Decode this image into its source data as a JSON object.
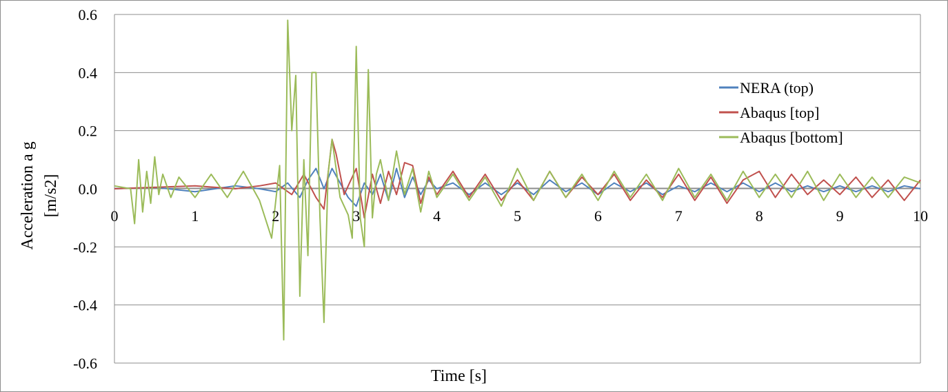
{
  "chart_data": {
    "type": "line",
    "xlabel": "Time  [s]",
    "ylabel_line1": "Acceleration  a  g",
    "ylabel_line2": "[m/s2]",
    "xlim": [
      0,
      10
    ],
    "ylim": [
      -0.6,
      0.6
    ],
    "xticks": [
      0,
      1,
      2,
      3,
      4,
      5,
      6,
      7,
      8,
      9,
      10
    ],
    "xtick_labels": [
      "0",
      "1",
      "2",
      "3",
      "4",
      "5",
      "6",
      "7",
      "8",
      "9",
      "10"
    ],
    "yticks": [
      0.6,
      0.4,
      0.2,
      0.0,
      -0.2,
      -0.4,
      -0.6
    ],
    "ytick_labels": [
      "0.6",
      "0.4",
      "0.2",
      "0.0",
      "-0.2",
      "-0.4",
      "-0.6"
    ],
    "grid": "horizontal",
    "legend_position": "top-right",
    "series": [
      {
        "name": "NERA (top)",
        "color": "#4f81bd",
        "x": [
          0,
          0.5,
          1.0,
          1.5,
          1.8,
          2.0,
          2.15,
          2.3,
          2.4,
          2.5,
          2.6,
          2.7,
          2.8,
          2.9,
          3.0,
          3.1,
          3.2,
          3.3,
          3.4,
          3.5,
          3.6,
          3.7,
          3.8,
          3.9,
          4.0,
          4.2,
          4.4,
          4.6,
          4.8,
          5.0,
          5.2,
          5.4,
          5.6,
          5.8,
          6.0,
          6.2,
          6.4,
          6.6,
          6.8,
          7.0,
          7.2,
          7.4,
          7.6,
          7.8,
          8.0,
          8.2,
          8.4,
          8.6,
          8.8,
          9.0,
          9.2,
          9.4,
          9.6,
          9.8,
          10.0
        ],
        "y": [
          0,
          0.005,
          -0.01,
          0.01,
          0.0,
          -0.01,
          0.02,
          -0.03,
          0.03,
          0.07,
          0.0,
          0.07,
          0.02,
          -0.03,
          -0.06,
          0.02,
          -0.02,
          0.05,
          -0.04,
          0.07,
          -0.03,
          0.04,
          -0.02,
          0.03,
          0.0,
          0.02,
          -0.02,
          0.02,
          -0.02,
          0.02,
          -0.02,
          0.03,
          -0.01,
          0.02,
          -0.02,
          0.02,
          -0.01,
          0.02,
          -0.02,
          0.01,
          -0.01,
          0.02,
          -0.01,
          0.02,
          -0.01,
          0.02,
          -0.01,
          0.01,
          -0.01,
          0.01,
          -0.01,
          0.01,
          -0.01,
          0.01,
          0.0
        ]
      },
      {
        "name": "Abaqus [top]",
        "color": "#c0504d",
        "x": [
          0,
          0.5,
          1.0,
          1.5,
          1.8,
          2.0,
          2.2,
          2.35,
          2.5,
          2.6,
          2.7,
          2.75,
          2.85,
          3.0,
          3.1,
          3.2,
          3.3,
          3.4,
          3.5,
          3.6,
          3.7,
          3.8,
          3.9,
          4.0,
          4.2,
          4.4,
          4.6,
          4.8,
          5.0,
          5.2,
          5.4,
          5.6,
          5.8,
          6.0,
          6.2,
          6.4,
          6.6,
          6.8,
          7.0,
          7.2,
          7.4,
          7.6,
          7.8,
          8.0,
          8.2,
          8.4,
          8.6,
          8.8,
          9.0,
          9.2,
          9.4,
          9.6,
          9.8,
          10.0
        ],
        "y": [
          0,
          0.005,
          0.01,
          0.0,
          0.01,
          0.02,
          -0.02,
          0.05,
          -0.03,
          -0.07,
          0.17,
          0.12,
          -0.02,
          0.07,
          -0.1,
          0.05,
          -0.05,
          0.06,
          -0.02,
          0.09,
          0.08,
          -0.05,
          0.04,
          -0.02,
          0.06,
          -0.03,
          0.05,
          -0.04,
          0.03,
          -0.04,
          0.06,
          -0.03,
          0.04,
          -0.02,
          0.05,
          -0.04,
          0.03,
          -0.03,
          0.05,
          -0.04,
          0.04,
          -0.05,
          0.03,
          0.06,
          -0.03,
          0.05,
          -0.02,
          0.03,
          -0.02,
          0.04,
          -0.03,
          0.03,
          -0.04,
          0.03
        ]
      },
      {
        "name": "Abaqus [bottom]",
        "color": "#9bbb59",
        "x": [
          0,
          0.2,
          0.25,
          0.3,
          0.35,
          0.4,
          0.45,
          0.5,
          0.55,
          0.6,
          0.7,
          0.8,
          1.0,
          1.2,
          1.4,
          1.6,
          1.8,
          1.95,
          2.05,
          2.1,
          2.15,
          2.2,
          2.25,
          2.3,
          2.35,
          2.4,
          2.45,
          2.5,
          2.55,
          2.6,
          2.65,
          2.7,
          2.8,
          2.9,
          2.95,
          3.0,
          3.05,
          3.1,
          3.15,
          3.2,
          3.25,
          3.3,
          3.4,
          3.5,
          3.6,
          3.7,
          3.8,
          3.9,
          4.0,
          4.2,
          4.4,
          4.6,
          4.8,
          5.0,
          5.2,
          5.4,
          5.6,
          5.8,
          6.0,
          6.2,
          6.4,
          6.6,
          6.8,
          7.0,
          7.2,
          7.4,
          7.6,
          7.8,
          8.0,
          8.2,
          8.4,
          8.6,
          8.8,
          9.0,
          9.2,
          9.4,
          9.6,
          9.8,
          10.0
        ],
        "y": [
          0.01,
          0.0,
          -0.12,
          0.1,
          -0.08,
          0.06,
          -0.05,
          0.11,
          -0.02,
          0.05,
          -0.03,
          0.04,
          -0.03,
          0.05,
          -0.03,
          0.06,
          -0.04,
          -0.17,
          0.08,
          -0.52,
          0.58,
          0.2,
          0.39,
          -0.37,
          0.1,
          -0.23,
          0.4,
          0.4,
          -0.1,
          -0.46,
          0.05,
          0.17,
          -0.03,
          -0.09,
          -0.17,
          0.49,
          -0.1,
          -0.2,
          0.41,
          -0.1,
          0.05,
          0.1,
          -0.04,
          0.13,
          -0.02,
          0.07,
          -0.08,
          0.06,
          -0.03,
          0.05,
          -0.04,
          0.04,
          -0.06,
          0.07,
          -0.04,
          0.06,
          -0.03,
          0.05,
          -0.04,
          0.06,
          -0.03,
          0.05,
          -0.04,
          0.07,
          -0.03,
          0.05,
          -0.04,
          0.06,
          -0.03,
          0.05,
          -0.03,
          0.06,
          -0.04,
          0.05,
          -0.03,
          0.04,
          -0.03,
          0.04,
          0.02
        ]
      }
    ]
  }
}
